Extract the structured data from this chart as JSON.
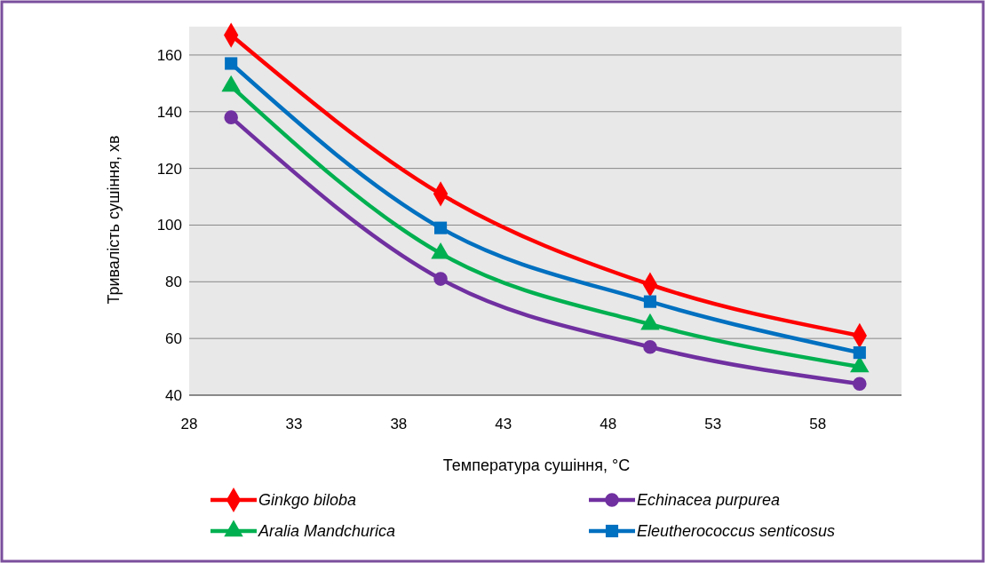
{
  "chart_data": {
    "type": "line",
    "xlabel": "Температура сушіння, °C",
    "ylabel": "Тривалість сушіння,  хв",
    "x": [
      30,
      40,
      50,
      60
    ],
    "series": [
      {
        "name": "Ginkgo biloba",
        "color": "#ff0000",
        "marker": "diamond",
        "values": [
          167,
          111,
          79,
          61
        ]
      },
      {
        "name": "Echinacea purpurea",
        "color": "#7030a0",
        "marker": "circle",
        "values": [
          138,
          81,
          57,
          44
        ]
      },
      {
        "name": "Aralia Mandchurica",
        "color": "#00b050",
        "marker": "triangle",
        "values": [
          149,
          90,
          65,
          50
        ]
      },
      {
        "name": "Eleutherococcus senticosus",
        "color": "#0070c0",
        "marker": "square",
        "values": [
          157,
          99,
          73,
          55
        ]
      }
    ],
    "xlim": [
      28,
      62
    ],
    "xticks": [
      28,
      33,
      38,
      43,
      48,
      53,
      58
    ],
    "ylim": [
      40,
      170
    ],
    "yticks": [
      40,
      60,
      80,
      100,
      120,
      140,
      160
    ],
    "grid": "y",
    "legend": "bottom",
    "line_style": "solid"
  }
}
